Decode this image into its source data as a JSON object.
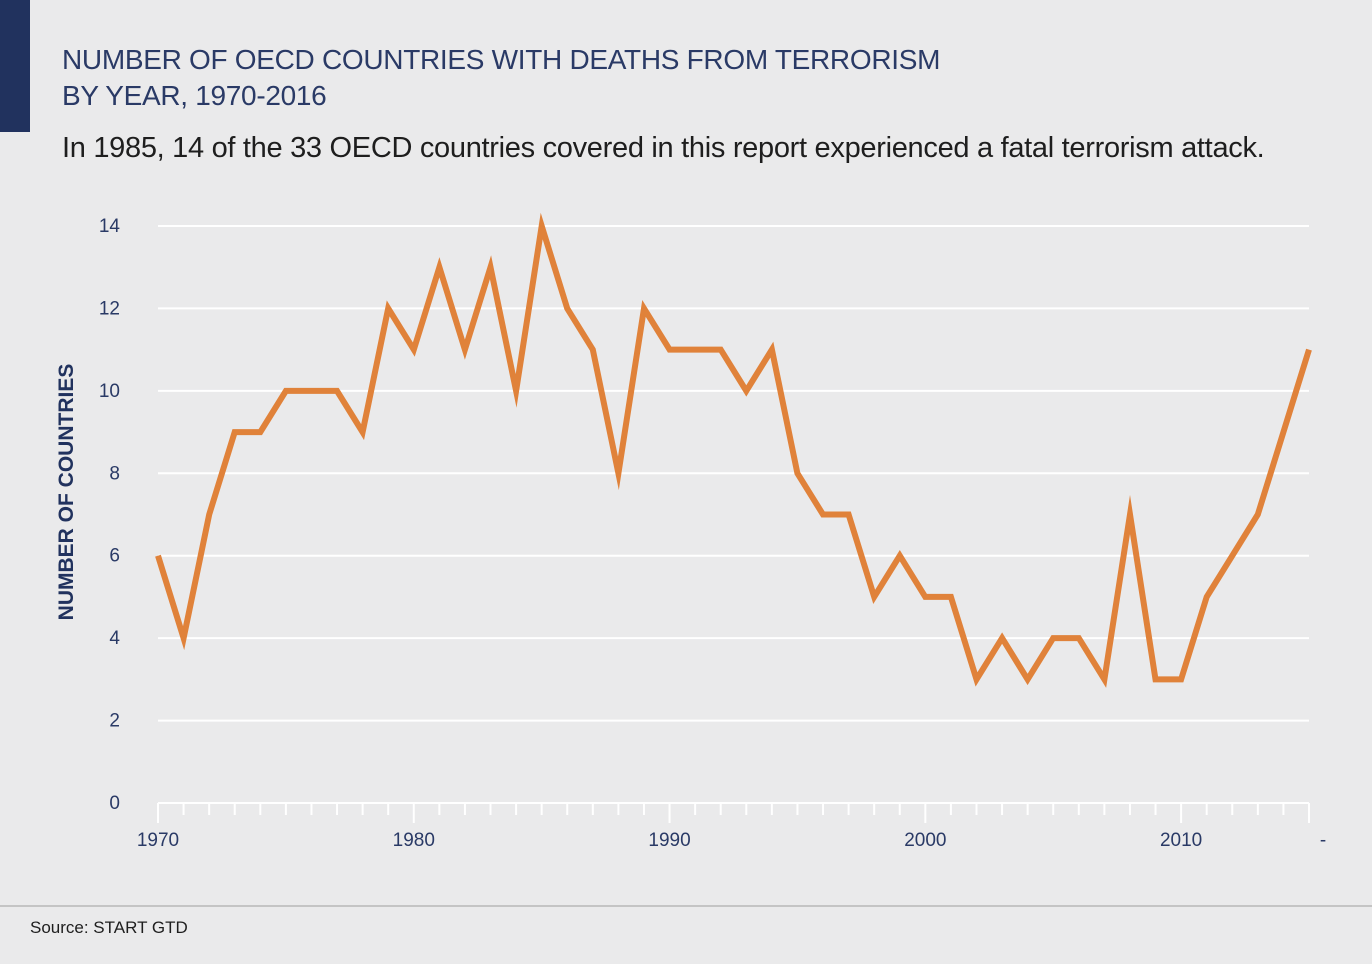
{
  "header": {
    "title_line1": "NUMBER OF OECD COUNTRIES WITH DEATHS FROM TERRORISM",
    "title_line2": "BY YEAR, 1970-2016",
    "subtitle": "In 1985, 14 of the 33 OECD countries covered in this report experienced a fatal terrorism attack."
  },
  "footer": {
    "source": "Source: START GTD"
  },
  "colors": {
    "line": "#e0823a",
    "grid": "#ffffff",
    "axis_text": "#2a3a66",
    "background": "#eaeaeb"
  },
  "chart_data": {
    "type": "line",
    "ylabel": "NUMBER OF COUNTRIES",
    "xlabel": "",
    "ylim": [
      0,
      14
    ],
    "xlim": [
      1970,
      2015
    ],
    "yticks": [
      0,
      2,
      4,
      6,
      8,
      10,
      12,
      14
    ],
    "xticks": [
      1970,
      1980,
      1990,
      2000,
      2010
    ],
    "xtick_labels": [
      "1970",
      "1980",
      "1990",
      "2000",
      "2010"
    ],
    "extra_tick_label": "-",
    "grid": true,
    "series": [
      {
        "x": [
          1970,
          1971,
          1972,
          1973,
          1974,
          1975,
          1976,
          1977,
          1978,
          1979,
          1980,
          1981,
          1982,
          1983,
          1984,
          1985,
          1986,
          1987,
          1988,
          1989,
          1990,
          1991,
          1992,
          1993,
          1994,
          1995,
          1996,
          1997,
          1998,
          1999,
          2000,
          2001,
          2002,
          2003,
          2004,
          2005,
          2006,
          2007,
          2008,
          2009,
          2010,
          2011,
          2012,
          2013,
          2014,
          2015
        ],
        "values": [
          6,
          4,
          7,
          9,
          9,
          10,
          10,
          10,
          9,
          12,
          11,
          13,
          11,
          13,
          10,
          14,
          12,
          11,
          8,
          12,
          11,
          11,
          11,
          10,
          11,
          8,
          7,
          7,
          5,
          6,
          5,
          5,
          3,
          4,
          3,
          4,
          4,
          3,
          7,
          3,
          3,
          5,
          6,
          7,
          9,
          11
        ]
      }
    ]
  }
}
